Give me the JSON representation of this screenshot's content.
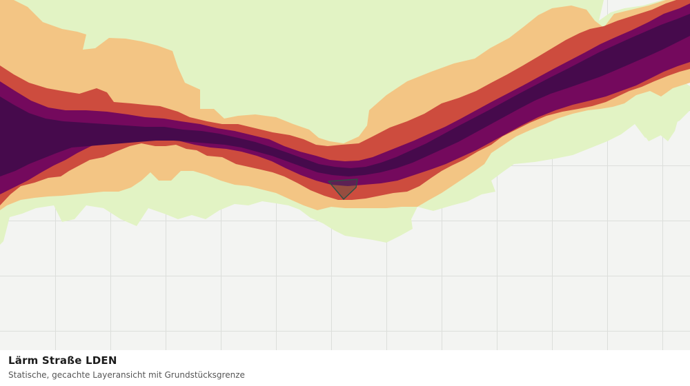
{
  "map": {
    "layer_name": "Lärm Straße LDEN",
    "description": "Statische, gecachte Layeransicht mit Grundstücksgrenze",
    "colors": {
      "background": "#f3f4f2",
      "grid_line": "#dcdedb",
      "band_1": "#e2f3c4",
      "band_2": "#f3c584",
      "band_3": "#cd4c3e",
      "band_4": "#74095d",
      "band_5": "#460a4c",
      "parcel_outline": "#2f4f44"
    }
  },
  "caption": {
    "title": "Lärm Straße LDEN",
    "subtitle": "Statische, gecachte Layeransicht mit Grundstücksgrenze"
  }
}
